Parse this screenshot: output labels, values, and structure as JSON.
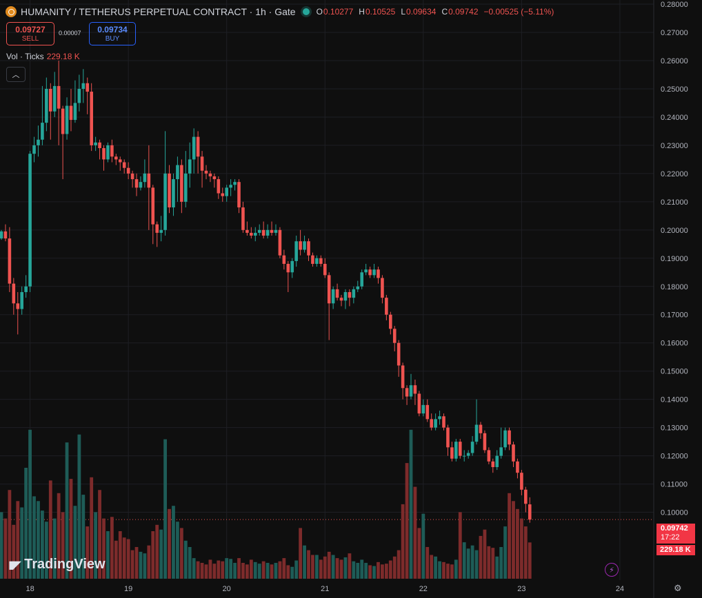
{
  "header": {
    "title": "HUMANITY / TETHERUS PERPETUAL CONTRACT · 1h · Gate",
    "o_label": "O",
    "o_value": "0.10277",
    "h_label": "H",
    "h_value": "0.10525",
    "l_label": "L",
    "l_value": "0.09634",
    "c_label": "C",
    "c_value": "0.09742",
    "change": "−0.00525 (−5.11%)"
  },
  "trade": {
    "sell_price": "0.09727",
    "sell_label": "SELL",
    "spread": "0.00007",
    "buy_price": "0.09734",
    "buy_label": "BUY"
  },
  "volume_legend": {
    "label": "Vol · Ticks",
    "value": "229.18 K"
  },
  "collapse_icon": "chevron-up-icon",
  "branding": "TradingView",
  "price_tag": {
    "price": "0.09742",
    "countdown": "17:22",
    "volume": "229.18 K"
  },
  "colors": {
    "up": "#26a69a",
    "down": "#ef5350",
    "vol_up": "#1e5c57",
    "vol_down": "#7d2b2b",
    "tag": "#f23645"
  },
  "chart_data": {
    "type": "candlestick",
    "interval": "1h",
    "y_ticks": [
      "0.10000",
      "0.11000",
      "0.12000",
      "0.13000",
      "0.14000",
      "0.15000",
      "0.16000",
      "0.17000",
      "0.18000",
      "0.19000",
      "0.20000",
      "0.21000",
      "0.22000",
      "0.23000",
      "0.24000",
      "0.25000",
      "0.26000",
      "0.27000",
      "0.28000"
    ],
    "ylim": [
      0.0933,
      0.2805
    ],
    "x_ticks": [
      "18",
      "19",
      "20",
      "21",
      "22",
      "23",
      "24"
    ],
    "x_tick_index": [
      7,
      31,
      55,
      79,
      103,
      127,
      151
    ],
    "last_price": 0.09742,
    "candles": [
      [
        0.197,
        0.1995,
        0.1965,
        0.2
      ],
      [
        0.1995,
        0.197,
        0.196,
        0.202
      ],
      [
        0.197,
        0.181,
        0.178,
        0.201
      ],
      [
        0.181,
        0.174,
        0.17,
        0.183
      ],
      [
        0.174,
        0.172,
        0.163,
        0.178
      ],
      [
        0.172,
        0.178,
        0.17,
        0.18
      ],
      [
        0.178,
        0.18,
        0.176,
        0.184
      ],
      [
        0.18,
        0.227,
        0.178,
        0.228
      ],
      [
        0.227,
        0.23,
        0.224,
        0.233
      ],
      [
        0.23,
        0.232,
        0.226,
        0.237
      ],
      [
        0.232,
        0.238,
        0.23,
        0.251
      ],
      [
        0.238,
        0.25,
        0.235,
        0.254
      ],
      [
        0.25,
        0.242,
        0.232,
        0.252
      ],
      [
        0.242,
        0.251,
        0.24,
        0.256
      ],
      [
        0.251,
        0.243,
        0.23,
        0.26
      ],
      [
        0.243,
        0.234,
        0.218,
        0.244
      ],
      [
        0.234,
        0.244,
        0.232,
        0.247
      ],
      [
        0.244,
        0.239,
        0.235,
        0.25
      ],
      [
        0.239,
        0.245,
        0.238,
        0.253
      ],
      [
        0.245,
        0.25,
        0.242,
        0.255
      ],
      [
        0.25,
        0.252,
        0.245,
        0.257
      ],
      [
        0.252,
        0.249,
        0.241,
        0.254
      ],
      [
        0.249,
        0.23,
        0.228,
        0.252
      ],
      [
        0.23,
        0.231,
        0.228,
        0.233
      ],
      [
        0.231,
        0.229,
        0.225,
        0.232
      ],
      [
        0.229,
        0.225,
        0.221,
        0.23
      ],
      [
        0.225,
        0.23,
        0.224,
        0.231
      ],
      [
        0.23,
        0.226,
        0.224,
        0.232
      ],
      [
        0.226,
        0.225,
        0.223,
        0.227
      ],
      [
        0.225,
        0.224,
        0.221,
        0.226
      ],
      [
        0.224,
        0.222,
        0.22,
        0.225
      ],
      [
        0.222,
        0.22,
        0.218,
        0.224
      ],
      [
        0.22,
        0.218,
        0.215,
        0.221
      ],
      [
        0.218,
        0.215,
        0.212,
        0.22
      ],
      [
        0.215,
        0.217,
        0.214,
        0.219
      ],
      [
        0.217,
        0.22,
        0.215,
        0.225
      ],
      [
        0.22,
        0.215,
        0.2,
        0.23
      ],
      [
        0.215,
        0.202,
        0.195,
        0.216
      ],
      [
        0.202,
        0.199,
        0.194,
        0.203
      ],
      [
        0.199,
        0.2,
        0.196,
        0.205
      ],
      [
        0.2,
        0.22,
        0.198,
        0.235
      ],
      [
        0.22,
        0.208,
        0.206,
        0.223
      ],
      [
        0.208,
        0.218,
        0.205,
        0.22
      ],
      [
        0.218,
        0.223,
        0.21,
        0.226
      ],
      [
        0.223,
        0.21,
        0.206,
        0.225
      ],
      [
        0.21,
        0.22,
        0.208,
        0.228
      ],
      [
        0.22,
        0.225,
        0.215,
        0.231
      ],
      [
        0.225,
        0.233,
        0.22,
        0.236
      ],
      [
        0.233,
        0.226,
        0.22,
        0.235
      ],
      [
        0.226,
        0.221,
        0.215,
        0.228
      ],
      [
        0.221,
        0.22,
        0.218,
        0.223
      ],
      [
        0.22,
        0.219,
        0.217,
        0.221
      ],
      [
        0.219,
        0.218,
        0.215,
        0.22
      ],
      [
        0.218,
        0.213,
        0.211,
        0.219
      ],
      [
        0.213,
        0.212,
        0.21,
        0.215
      ],
      [
        0.212,
        0.215,
        0.21,
        0.216
      ],
      [
        0.215,
        0.216,
        0.212,
        0.218
      ],
      [
        0.216,
        0.217,
        0.214,
        0.218
      ],
      [
        0.217,
        0.208,
        0.206,
        0.218
      ],
      [
        0.208,
        0.2,
        0.199,
        0.21
      ],
      [
        0.2,
        0.199,
        0.198,
        0.203
      ],
      [
        0.199,
        0.198,
        0.197,
        0.201
      ],
      [
        0.198,
        0.199,
        0.196,
        0.201
      ],
      [
        0.199,
        0.2,
        0.198,
        0.202
      ],
      [
        0.2,
        0.198,
        0.197,
        0.203
      ],
      [
        0.198,
        0.2,
        0.197,
        0.202
      ],
      [
        0.2,
        0.199,
        0.198,
        0.203
      ],
      [
        0.199,
        0.2,
        0.198,
        0.202
      ],
      [
        0.2,
        0.191,
        0.19,
        0.201
      ],
      [
        0.191,
        0.188,
        0.186,
        0.193
      ],
      [
        0.188,
        0.185,
        0.178,
        0.189
      ],
      [
        0.185,
        0.189,
        0.183,
        0.19
      ],
      [
        0.189,
        0.196,
        0.187,
        0.198
      ],
      [
        0.196,
        0.193,
        0.191,
        0.2
      ],
      [
        0.193,
        0.196,
        0.192,
        0.198
      ],
      [
        0.196,
        0.191,
        0.189,
        0.197
      ],
      [
        0.191,
        0.188,
        0.187,
        0.192
      ],
      [
        0.188,
        0.19,
        0.187,
        0.191
      ],
      [
        0.19,
        0.188,
        0.187,
        0.191
      ],
      [
        0.188,
        0.184,
        0.183,
        0.19
      ],
      [
        0.184,
        0.174,
        0.161,
        0.185
      ],
      [
        0.174,
        0.179,
        0.172,
        0.18
      ],
      [
        0.179,
        0.176,
        0.175,
        0.181
      ],
      [
        0.176,
        0.175,
        0.173,
        0.177
      ],
      [
        0.175,
        0.178,
        0.172,
        0.179
      ],
      [
        0.178,
        0.176,
        0.173,
        0.179
      ],
      [
        0.176,
        0.179,
        0.174,
        0.18
      ],
      [
        0.179,
        0.18,
        0.178,
        0.182
      ],
      [
        0.18,
        0.185,
        0.179,
        0.186
      ],
      [
        0.185,
        0.186,
        0.184,
        0.188
      ],
      [
        0.186,
        0.184,
        0.183,
        0.187
      ],
      [
        0.184,
        0.186,
        0.183,
        0.188
      ],
      [
        0.186,
        0.183,
        0.181,
        0.187
      ],
      [
        0.183,
        0.176,
        0.174,
        0.184
      ],
      [
        0.176,
        0.17,
        0.168,
        0.177
      ],
      [
        0.17,
        0.165,
        0.163,
        0.171
      ],
      [
        0.165,
        0.16,
        0.157,
        0.166
      ],
      [
        0.16,
        0.152,
        0.148,
        0.161
      ],
      [
        0.152,
        0.144,
        0.14,
        0.153
      ],
      [
        0.144,
        0.141,
        0.138,
        0.145
      ],
      [
        0.141,
        0.145,
        0.14,
        0.149
      ],
      [
        0.145,
        0.142,
        0.138,
        0.147
      ],
      [
        0.142,
        0.135,
        0.134,
        0.143
      ],
      [
        0.135,
        0.138,
        0.134,
        0.14
      ],
      [
        0.138,
        0.133,
        0.132,
        0.14
      ],
      [
        0.133,
        0.13,
        0.129,
        0.135
      ],
      [
        0.13,
        0.133,
        0.129,
        0.135
      ],
      [
        0.133,
        0.134,
        0.131,
        0.136
      ],
      [
        0.134,
        0.13,
        0.129,
        0.135
      ],
      [
        0.13,
        0.123,
        0.12,
        0.131
      ],
      [
        0.123,
        0.119,
        0.118,
        0.125
      ],
      [
        0.119,
        0.125,
        0.118,
        0.126
      ],
      [
        0.125,
        0.12,
        0.119,
        0.126
      ],
      [
        0.12,
        0.12,
        0.118,
        0.122
      ],
      [
        0.12,
        0.121,
        0.119,
        0.122
      ],
      [
        0.121,
        0.125,
        0.12,
        0.127
      ],
      [
        0.125,
        0.131,
        0.124,
        0.14
      ],
      [
        0.131,
        0.128,
        0.126,
        0.132
      ],
      [
        0.128,
        0.122,
        0.121,
        0.129
      ],
      [
        0.122,
        0.118,
        0.117,
        0.123
      ],
      [
        0.118,
        0.116,
        0.114,
        0.119
      ],
      [
        0.116,
        0.12,
        0.115,
        0.122
      ],
      [
        0.12,
        0.123,
        0.119,
        0.13
      ],
      [
        0.123,
        0.129,
        0.122,
        0.13
      ],
      [
        0.129,
        0.124,
        0.122,
        0.13
      ],
      [
        0.124,
        0.118,
        0.116,
        0.125
      ],
      [
        0.118,
        0.114,
        0.112,
        0.119
      ],
      [
        0.114,
        0.108,
        0.106,
        0.115
      ],
      [
        0.108,
        0.103,
        0.1,
        0.109
      ],
      [
        0.1028,
        0.0974,
        0.0963,
        0.1053
      ]
    ],
    "volume_values_k": [
      420,
      380,
      560,
      340,
      490,
      450,
      700,
      940,
      520,
      490,
      430,
      360,
      620,
      380,
      540,
      420,
      860,
      630,
      460,
      910,
      530,
      330,
      640,
      420,
      560,
      380,
      300,
      390,
      240,
      300,
      260,
      250,
      180,
      200,
      170,
      160,
      210,
      300,
      340,
      310,
      880,
      440,
      460,
      360,
      320,
      240,
      200,
      130,
      110,
      100,
      90,
      120,
      95,
      115,
      110,
      130,
      125,
      100,
      130,
      100,
      90,
      120,
      105,
      95,
      110,
      100,
      90,
      100,
      110,
      130,
      85,
      75,
      115,
      320,
      210,
      180,
      150,
      150,
      120,
      140,
      170,
      150,
      130,
      120,
      135,
      160,
      110,
      100,
      120,
      100,
      85,
      80,
      105,
      90,
      95,
      115,
      140,
      180,
      470,
      730,
      940,
      580,
      320,
      410,
      200,
      150,
      140,
      110,
      105,
      95,
      90,
      120,
      420,
      230,
      190,
      210,
      180,
      270,
      310,
      205,
      195,
      140,
      200,
      330,
      540,
      490,
      440,
      380,
      330,
      229
    ]
  }
}
